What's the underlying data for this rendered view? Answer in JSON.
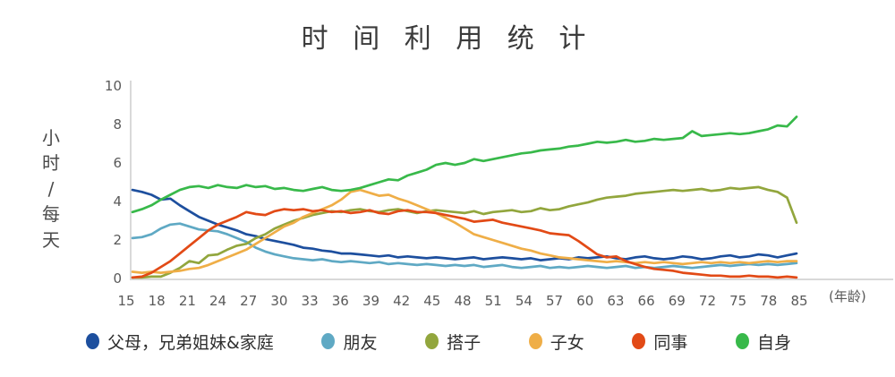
{
  "title": "时 间 利 用 统 计",
  "chart_data": {
    "type": "line",
    "title": "时间利用统计",
    "ylabel": "小时/每天",
    "xlabel": "(年龄)",
    "ylim": [
      0,
      10
    ],
    "y_ticks": [
      0,
      2,
      4,
      6,
      8,
      10
    ],
    "x_tick_labels": [
      "15",
      "18",
      "21",
      "24",
      "27",
      "30",
      "33",
      "36",
      "39",
      "42",
      "45",
      "48",
      "51",
      "54",
      "57",
      "60",
      "63",
      "66",
      "69",
      "72",
      "75",
      "78",
      "85"
    ],
    "age_start": 15,
    "age_end": 85,
    "age_step": 1,
    "grid": false,
    "legend_position": "bottom",
    "colors": {
      "background": "#ffffff",
      "axis_line": "#d9d9d9",
      "tick_text": "#595959",
      "title_text": "#3b3b3b"
    },
    "series": [
      {
        "name": "family",
        "label": "父母，兄弟姐妹&家庭",
        "color": "#1d4f9e",
        "values": [
          4.6,
          4.5,
          4.35,
          4.1,
          4.15,
          3.8,
          3.5,
          3.2,
          3.0,
          2.8,
          2.65,
          2.5,
          2.3,
          2.2,
          2.05,
          1.95,
          1.85,
          1.75,
          1.6,
          1.55,
          1.45,
          1.4,
          1.3,
          1.3,
          1.25,
          1.2,
          1.15,
          1.2,
          1.1,
          1.15,
          1.1,
          1.05,
          1.1,
          1.05,
          1.0,
          1.05,
          1.1,
          1.0,
          1.05,
          1.1,
          1.05,
          1.0,
          1.05,
          0.95,
          1.0,
          1.05,
          1.0,
          1.1,
          1.05,
          1.1,
          1.15,
          1.05,
          1.0,
          1.1,
          1.15,
          1.05,
          1.0,
          1.05,
          1.15,
          1.1,
          1.0,
          1.05,
          1.15,
          1.2,
          1.1,
          1.15,
          1.25,
          1.2,
          1.1,
          1.2,
          1.3
        ]
      },
      {
        "name": "friends",
        "label": "朋友",
        "color": "#5fa9c4",
        "values": [
          2.1,
          2.15,
          2.3,
          2.6,
          2.8,
          2.85,
          2.7,
          2.55,
          2.5,
          2.45,
          2.3,
          2.1,
          1.9,
          1.6,
          1.4,
          1.25,
          1.15,
          1.05,
          1.0,
          0.95,
          1.0,
          0.9,
          0.85,
          0.9,
          0.85,
          0.8,
          0.85,
          0.75,
          0.8,
          0.75,
          0.7,
          0.75,
          0.7,
          0.65,
          0.7,
          0.65,
          0.7,
          0.6,
          0.65,
          0.7,
          0.6,
          0.55,
          0.6,
          0.65,
          0.55,
          0.6,
          0.55,
          0.6,
          0.65,
          0.6,
          0.55,
          0.6,
          0.65,
          0.55,
          0.6,
          0.55,
          0.6,
          0.65,
          0.6,
          0.55,
          0.6,
          0.65,
          0.7,
          0.65,
          0.7,
          0.75,
          0.7,
          0.75,
          0.7,
          0.75,
          0.8
        ]
      },
      {
        "name": "companions",
        "label": "搭子",
        "color": "#92a63d",
        "values": [
          0.05,
          0.05,
          0.1,
          0.1,
          0.3,
          0.55,
          0.9,
          0.8,
          1.2,
          1.25,
          1.5,
          1.7,
          1.8,
          2.1,
          2.3,
          2.6,
          2.8,
          3.0,
          3.15,
          3.3,
          3.4,
          3.5,
          3.45,
          3.55,
          3.6,
          3.5,
          3.45,
          3.55,
          3.6,
          3.5,
          3.4,
          3.5,
          3.55,
          3.5,
          3.45,
          3.4,
          3.5,
          3.35,
          3.45,
          3.5,
          3.55,
          3.45,
          3.5,
          3.65,
          3.55,
          3.6,
          3.75,
          3.85,
          3.95,
          4.1,
          4.2,
          4.25,
          4.3,
          4.4,
          4.45,
          4.5,
          4.55,
          4.6,
          4.55,
          4.6,
          4.65,
          4.55,
          4.6,
          4.7,
          4.65,
          4.7,
          4.75,
          4.6,
          4.5,
          4.2,
          2.9
        ]
      },
      {
        "name": "children",
        "label": "子女",
        "color": "#efae47",
        "values": [
          0.35,
          0.3,
          0.35,
          0.3,
          0.35,
          0.4,
          0.5,
          0.55,
          0.7,
          0.9,
          1.1,
          1.3,
          1.5,
          1.8,
          2.1,
          2.4,
          2.7,
          2.9,
          3.2,
          3.4,
          3.6,
          3.8,
          4.1,
          4.5,
          4.6,
          4.45,
          4.3,
          4.35,
          4.15,
          4.0,
          3.8,
          3.6,
          3.4,
          3.15,
          2.9,
          2.6,
          2.3,
          2.15,
          2.0,
          1.85,
          1.7,
          1.55,
          1.45,
          1.3,
          1.2,
          1.1,
          1.05,
          1.0,
          0.95,
          0.9,
          0.85,
          0.9,
          0.85,
          0.8,
          0.85,
          0.8,
          0.85,
          0.8,
          0.75,
          0.8,
          0.85,
          0.8,
          0.85,
          0.8,
          0.85,
          0.8,
          0.85,
          0.9,
          0.85,
          0.9,
          0.9
        ]
      },
      {
        "name": "colleagues",
        "label": "同事",
        "color": "#e24a16",
        "values": [
          0.05,
          0.1,
          0.3,
          0.6,
          0.9,
          1.3,
          1.7,
          2.1,
          2.5,
          2.8,
          3.0,
          3.2,
          3.45,
          3.35,
          3.3,
          3.5,
          3.6,
          3.55,
          3.6,
          3.5,
          3.55,
          3.45,
          3.5,
          3.4,
          3.45,
          3.55,
          3.4,
          3.35,
          3.5,
          3.55,
          3.45,
          3.45,
          3.4,
          3.3,
          3.2,
          3.1,
          2.95,
          3.0,
          3.05,
          2.9,
          2.8,
          2.7,
          2.6,
          2.5,
          2.35,
          2.3,
          2.25,
          1.95,
          1.6,
          1.25,
          1.1,
          1.15,
          0.9,
          0.75,
          0.6,
          0.5,
          0.45,
          0.4,
          0.3,
          0.25,
          0.2,
          0.15,
          0.15,
          0.1,
          0.1,
          0.15,
          0.1,
          0.1,
          0.05,
          0.1,
          0.05
        ]
      },
      {
        "name": "self",
        "label": "自身",
        "color": "#38b94a",
        "values": [
          3.45,
          3.6,
          3.8,
          4.1,
          4.35,
          4.6,
          4.75,
          4.8,
          4.7,
          4.85,
          4.75,
          4.7,
          4.85,
          4.75,
          4.8,
          4.65,
          4.7,
          4.6,
          4.55,
          4.65,
          4.75,
          4.6,
          4.55,
          4.6,
          4.7,
          4.85,
          5.0,
          5.15,
          5.1,
          5.35,
          5.5,
          5.65,
          5.9,
          6.0,
          5.9,
          6.0,
          6.2,
          6.1,
          6.2,
          6.3,
          6.4,
          6.5,
          6.55,
          6.65,
          6.7,
          6.75,
          6.85,
          6.9,
          7.0,
          7.1,
          7.05,
          7.1,
          7.2,
          7.1,
          7.15,
          7.25,
          7.2,
          7.25,
          7.3,
          7.65,
          7.4,
          7.45,
          7.5,
          7.55,
          7.5,
          7.55,
          7.65,
          7.75,
          7.95,
          7.9,
          8.4
        ]
      }
    ]
  }
}
